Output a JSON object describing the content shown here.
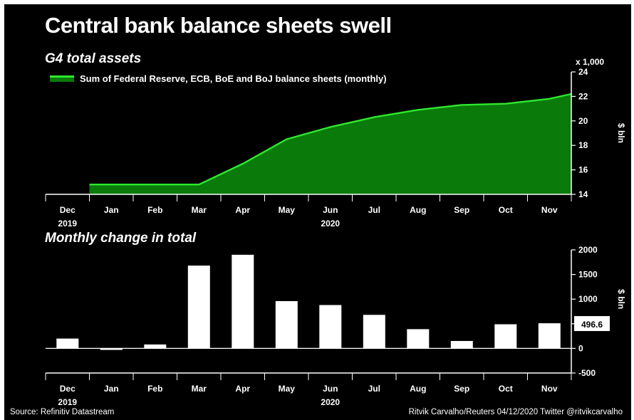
{
  "title": "Central bank balance sheets swell",
  "footer": {
    "source": "Source: Refinitiv Datastream",
    "credit": "Ritvik Carvalho/Reuters 04/12/2020 Twitter @ritvikcarvalho"
  },
  "colors": {
    "background": "#000000",
    "line": "#2ee82e",
    "area": "#0a7a0a",
    "bar": "#ffffff"
  },
  "chart_data": [
    {
      "type": "area",
      "title": "G4 total assets",
      "legend": "Sum of Federal Reserve, ECB, BoE and BoJ balance sheets (monthly)",
      "legend_position": "top-left",
      "categories": [
        "Dec",
        "Jan",
        "Feb",
        "Mar",
        "Apr",
        "May",
        "Jun",
        "Jul",
        "Aug",
        "Sep",
        "Oct",
        "Nov"
      ],
      "year_labels": [
        {
          "category": "Dec",
          "label": "2019"
        },
        {
          "category": "Jun",
          "label": "2020"
        }
      ],
      "x": [
        0.5,
        1,
        2,
        3,
        4,
        5,
        6,
        7,
        8,
        9,
        10,
        11,
        11.5
      ],
      "values": [
        14.8,
        14.8,
        14.8,
        14.8,
        16.5,
        18.5,
        19.5,
        20.3,
        20.9,
        21.3,
        21.4,
        21.8,
        22.2
      ],
      "ylabel": "$ bln",
      "yunit": "x 1,000",
      "ylim": [
        14,
        24
      ],
      "yticks": [
        14,
        16,
        18,
        20,
        22,
        24
      ],
      "grid": false
    },
    {
      "type": "bar",
      "title": "Monthly change in total",
      "categories": [
        "Dec",
        "Jan",
        "Feb",
        "Mar",
        "Apr",
        "May",
        "Jun",
        "Jul",
        "Aug",
        "Sep",
        "Oct",
        "Nov"
      ],
      "year_labels": [
        {
          "category": "Dec",
          "label": "2019"
        },
        {
          "category": "Jun",
          "label": "2020"
        }
      ],
      "values": [
        200,
        -30,
        80,
        1680,
        1900,
        960,
        880,
        680,
        390,
        150,
        490,
        510
      ],
      "ylabel": "$ bln",
      "ylim": [
        -500,
        2000
      ],
      "yticks": [
        -500,
        0,
        500,
        1000,
        1500,
        2000
      ],
      "callout": "496.6",
      "grid": false
    }
  ]
}
